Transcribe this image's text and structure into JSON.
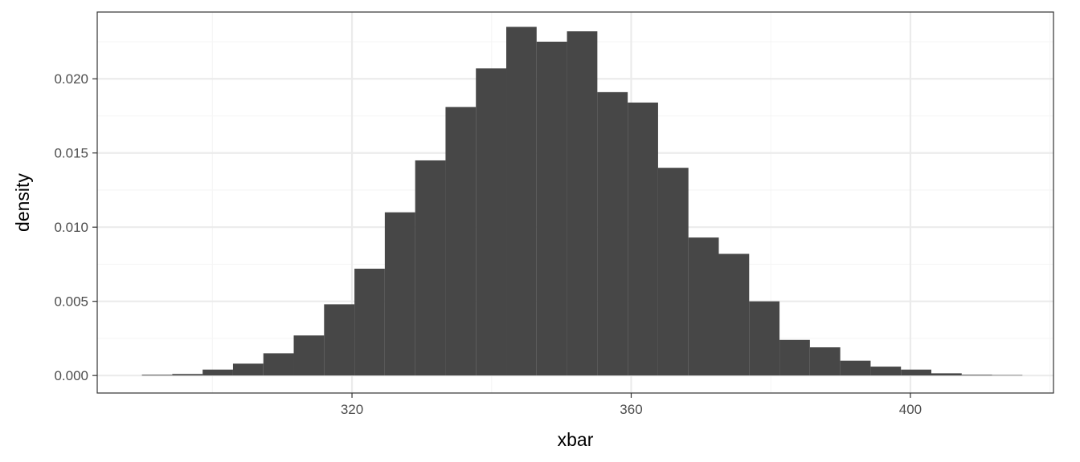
{
  "chart_data": {
    "type": "histogram",
    "xlabel": "xbar",
    "ylabel": "density",
    "xlim": [
      283.5,
      420.5
    ],
    "ylim": [
      -0.00118,
      0.0245
    ],
    "x_ticks": [
      320,
      360,
      400
    ],
    "x_tick_labels": [
      "320",
      "360",
      "400"
    ],
    "x_minor_ticks": [
      300,
      340,
      380,
      420
    ],
    "y_ticks": [
      0.0,
      0.005,
      0.01,
      0.015,
      0.02
    ],
    "y_tick_labels": [
      "0.000",
      "0.005",
      "0.010",
      "0.015",
      "0.020"
    ],
    "y_minor_ticks": [
      0.0025,
      0.0075,
      0.0125,
      0.0175,
      0.0225
    ],
    "bin_width": 4.35,
    "bins": [
      {
        "x_start": 289.9,
        "x_end": 294.25,
        "density": 5e-05
      },
      {
        "x_start": 294.25,
        "x_end": 298.6,
        "density": 0.0001
      },
      {
        "x_start": 298.6,
        "x_end": 302.95,
        "density": 0.0004
      },
      {
        "x_start": 302.95,
        "x_end": 307.3,
        "density": 0.0008
      },
      {
        "x_start": 307.3,
        "x_end": 311.65,
        "density": 0.0015
      },
      {
        "x_start": 311.65,
        "x_end": 316.0,
        "density": 0.0027
      },
      {
        "x_start": 316.0,
        "x_end": 320.35,
        "density": 0.0048
      },
      {
        "x_start": 320.35,
        "x_end": 324.7,
        "density": 0.0072
      },
      {
        "x_start": 324.7,
        "x_end": 329.05,
        "density": 0.011
      },
      {
        "x_start": 329.05,
        "x_end": 333.4,
        "density": 0.0145
      },
      {
        "x_start": 333.4,
        "x_end": 337.75,
        "density": 0.0181
      },
      {
        "x_start": 337.75,
        "x_end": 342.1,
        "density": 0.0207
      },
      {
        "x_start": 342.1,
        "x_end": 346.45,
        "density": 0.0235
      },
      {
        "x_start": 346.45,
        "x_end": 350.8,
        "density": 0.0225
      },
      {
        "x_start": 350.8,
        "x_end": 355.15,
        "density": 0.0232
      },
      {
        "x_start": 355.15,
        "x_end": 359.5,
        "density": 0.0191
      },
      {
        "x_start": 359.5,
        "x_end": 363.85,
        "density": 0.0184
      },
      {
        "x_start": 363.85,
        "x_end": 368.2,
        "density": 0.014
      },
      {
        "x_start": 368.2,
        "x_end": 372.55,
        "density": 0.0093
      },
      {
        "x_start": 372.55,
        "x_end": 376.9,
        "density": 0.0082
      },
      {
        "x_start": 376.9,
        "x_end": 381.25,
        "density": 0.005
      },
      {
        "x_start": 381.25,
        "x_end": 385.6,
        "density": 0.0024
      },
      {
        "x_start": 385.6,
        "x_end": 389.95,
        "density": 0.0019
      },
      {
        "x_start": 389.95,
        "x_end": 394.3,
        "density": 0.001
      },
      {
        "x_start": 394.3,
        "x_end": 398.65,
        "density": 0.0006
      },
      {
        "x_start": 398.65,
        "x_end": 403.0,
        "density": 0.0004
      },
      {
        "x_start": 403.0,
        "x_end": 407.35,
        "density": 0.00015
      },
      {
        "x_start": 407.35,
        "x_end": 411.7,
        "density": 5e-05
      },
      {
        "x_start": 411.7,
        "x_end": 416.05,
        "density": 3e-05
      }
    ],
    "grid": true,
    "legend": "none",
    "colors": {
      "bar_fill": "#474747",
      "panel_background": "#ffffff",
      "grid_major": "#ebebeb",
      "grid_minor": "#f5f5f5",
      "panel_border": "#333333",
      "tick_label": "#4d4d4d",
      "axis_title": "#000000"
    }
  }
}
